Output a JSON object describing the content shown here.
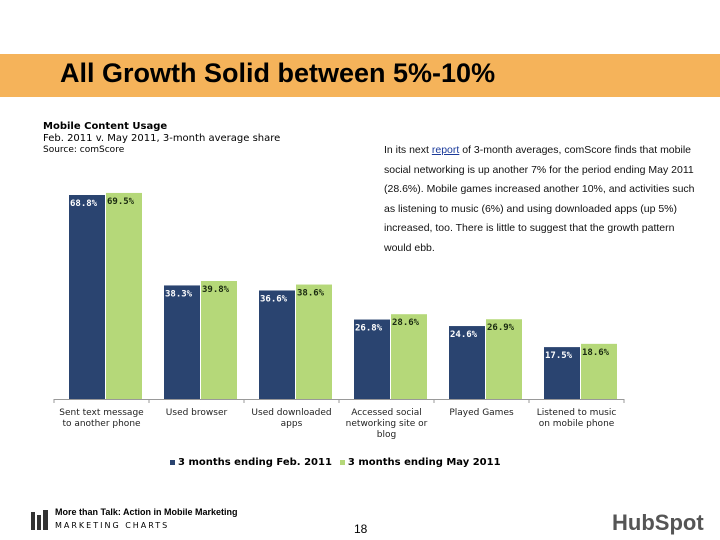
{
  "slide": {
    "title": "All Growth Solid between 5%-10%",
    "page_number": "18"
  },
  "paragraph": {
    "before_link": "In its next ",
    "link": "report",
    "after_link": " of 3-month averages, comScore finds that mobile social networking is up another 7% for the period ending May 2011 (28.6%). Mobile games increased another 10%, and activities such as listening to music (6%) and using downloaded apps (up 5%) increased, too. There is little to suggest that the growth pattern would ebb."
  },
  "footer": {
    "line1": "More than Talk: Action in Mobile Marketing",
    "line2": "MARKETING CHARTS",
    "brand": "HubSpot"
  },
  "chart_data": {
    "type": "bar",
    "title": "Mobile Content Usage",
    "subtitle": "Feb. 2011 v. May 2011, 3-month average share",
    "source": "Source: comScore",
    "categories": [
      "Sent text message to another phone",
      "Used browser",
      "Used downloaded apps",
      "Accessed social networking site or blog",
      "Played Games",
      "Listened to music on mobile phone"
    ],
    "series": [
      {
        "name": "3 months ending Feb. 2011",
        "values": [
          68.8,
          38.3,
          36.6,
          26.8,
          24.6,
          17.5
        ],
        "labels": [
          "68.8%",
          "38.3%",
          "36.6%",
          "26.8%",
          "24.6%",
          "17.5%"
        ],
        "color": "#2a4470"
      },
      {
        "name": "3 months ending May 2011",
        "values": [
          69.5,
          39.8,
          38.6,
          28.6,
          26.9,
          18.6
        ],
        "labels": [
          "69.5%",
          "39.8%",
          "38.6%",
          "28.6%",
          "26.9%",
          "18.6%"
        ],
        "color": "#b5d879"
      }
    ],
    "ylim": [
      0,
      100
    ],
    "grid": false,
    "legend": "bottom",
    "accent": "#f5b35a"
  }
}
